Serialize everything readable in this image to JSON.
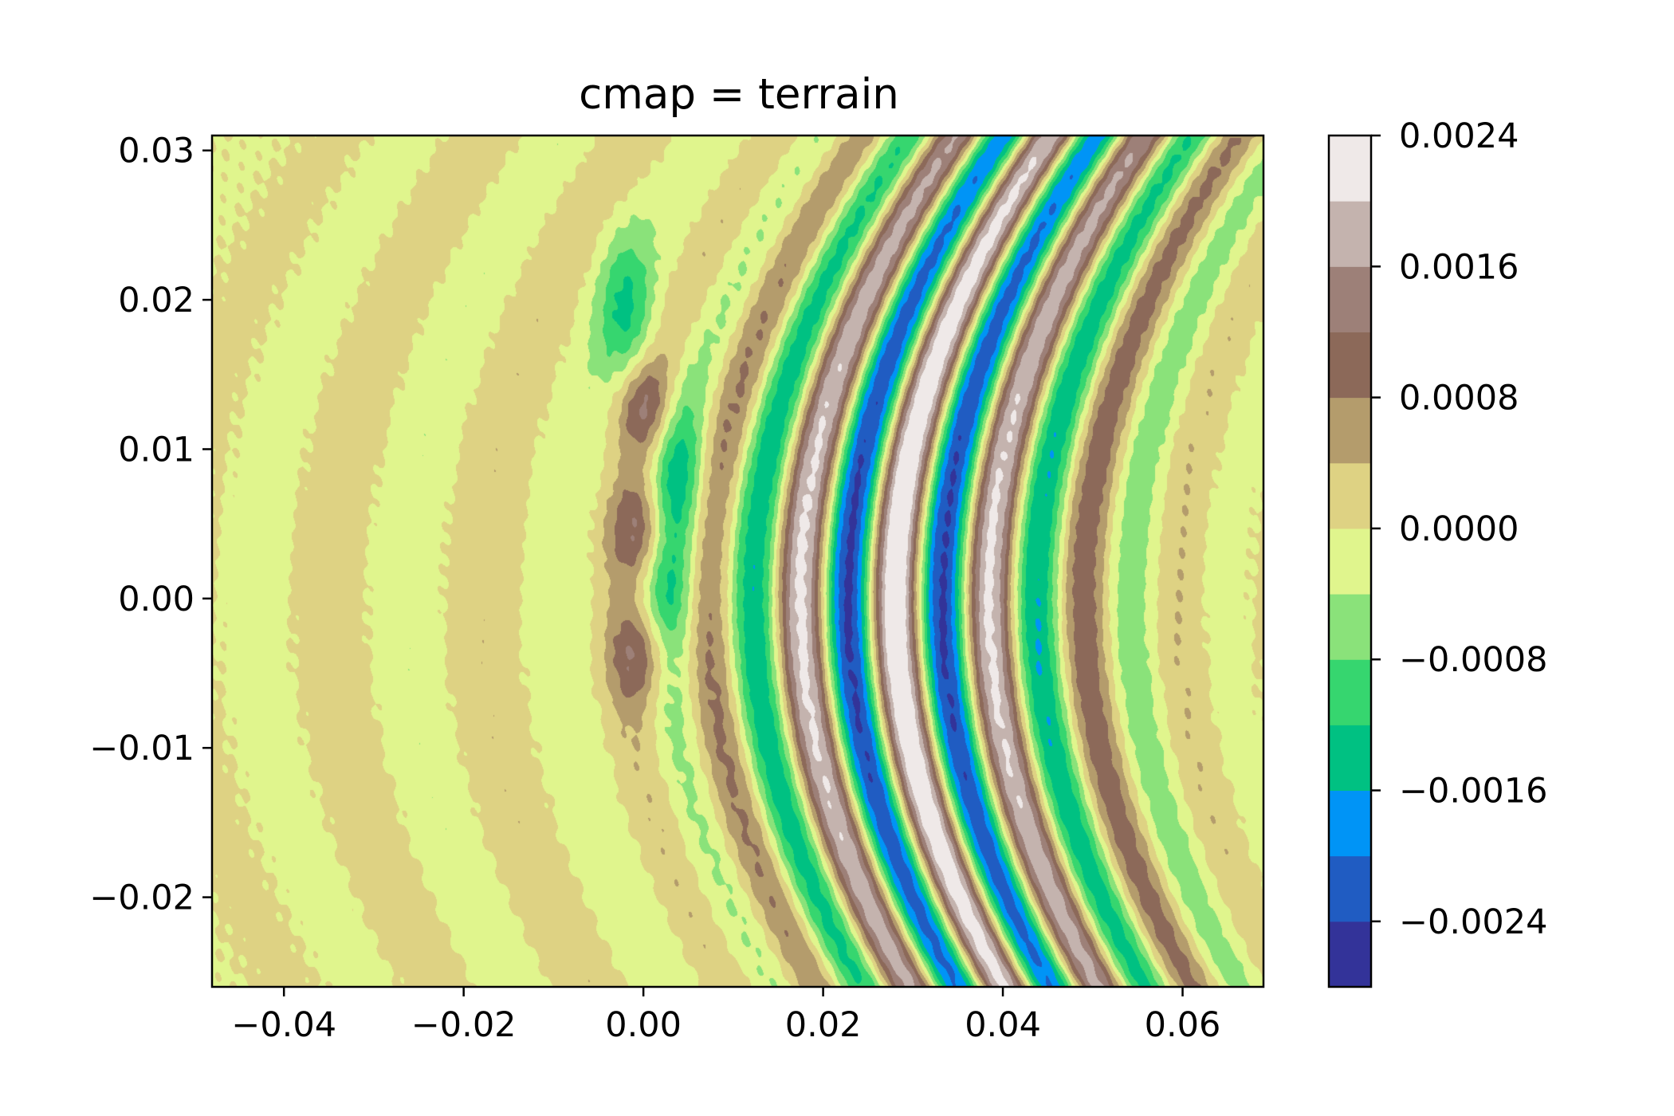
{
  "chart_data": {
    "type": "heatmap",
    "subtype": "filled-contour",
    "title": "cmap = terrain",
    "xlabel": "",
    "ylabel": "",
    "xlim": [
      -0.048,
      0.069
    ],
    "ylim": [
      -0.026,
      0.031
    ],
    "x_ticks": [
      -0.04,
      -0.02,
      0.0,
      0.02,
      0.04,
      0.06
    ],
    "x_tick_labels": [
      "−0.04",
      "−0.02",
      "0.00",
      "0.02",
      "0.04",
      "0.06"
    ],
    "y_ticks": [
      -0.02,
      -0.01,
      0.0,
      0.01,
      0.02,
      0.03
    ],
    "y_tick_labels": [
      "−0.02",
      "−0.01",
      "0.00",
      "0.01",
      "0.02",
      "0.03"
    ],
    "colormap": "terrain",
    "contour_levels": [
      -0.0028,
      -0.0024,
      -0.002,
      -0.0016,
      -0.0012,
      -0.0008,
      -0.0004,
      0.0,
      0.0004,
      0.0008,
      0.0012,
      0.0016,
      0.002,
      0.0024
    ],
    "level_colors": [
      "#333399",
      "#205cc2",
      "#0094f6",
      "#00c182",
      "#36d66f",
      "#8ae27a",
      "#e0f58d",
      "#ded283",
      "#b49c6c",
      "#8c6959",
      "#9d8078",
      "#c4b3ae",
      "#efe9e8"
    ],
    "colorbar_ticks": [
      -0.0024,
      -0.0016,
      -0.0008,
      0.0,
      0.0008,
      0.0016,
      0.0024
    ],
    "colorbar_tick_labels": [
      "−0.0024",
      "−0.0016",
      "−0.0008",
      "0.0000",
      "0.0008",
      "0.0016",
      "0.0024"
    ],
    "pattern": {
      "description_free_model": "interference fringes",
      "fringe_spacing": 0.0106,
      "fringe_center_x": 0.028,
      "fringe_curvature": 18,
      "fringe_onset_x": -0.008,
      "peak_amplitude": 0.0026,
      "spot_column_x": 0.0,
      "spot_centers_y": [
        0.013,
        0.0045,
        -0.0038
      ]
    }
  }
}
